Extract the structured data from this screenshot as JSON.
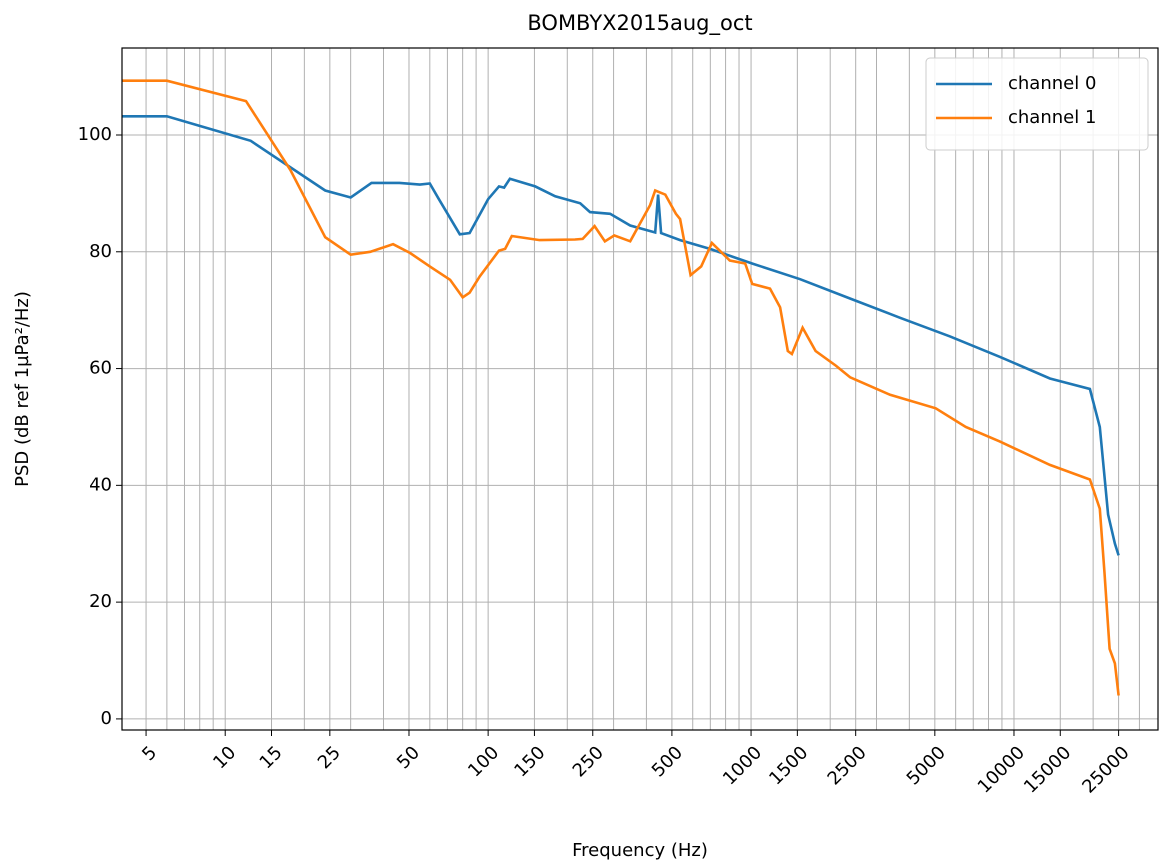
{
  "chart_data": {
    "type": "line",
    "title": "BOMBYX2015aug_oct",
    "xlabel": "Frequency (Hz)",
    "ylabel": "PSD (dB ref 1µPa²/Hz)",
    "xscale": "log",
    "grid": true,
    "legend": "upper right",
    "xlim": [
      4.05,
      35300
    ],
    "ylim": [
      -1.9,
      114.9
    ],
    "xticks": [
      5,
      10,
      15,
      25,
      50,
      100,
      150,
      250,
      500,
      1000,
      1500,
      2500,
      5000,
      10000,
      15000,
      25000
    ],
    "xminorticks": [
      6,
      7,
      8,
      9,
      20,
      30,
      40,
      60,
      70,
      80,
      90,
      200,
      300,
      400,
      600,
      700,
      800,
      900,
      2000,
      3000,
      4000,
      6000,
      7000,
      8000,
      9000,
      20000,
      30000
    ],
    "yticks": [
      0,
      20,
      40,
      60,
      80,
      100
    ],
    "series": [
      {
        "name": "channel 0",
        "color": "#1f77b4",
        "x": [
          4.05,
          6,
          12.5,
          24,
          30,
          36,
          46,
          55,
          60,
          65,
          78,
          85,
          100,
          110,
          115,
          121,
          151,
          180,
          224,
          244,
          291,
          347,
          432,
          443,
          455,
          537,
          698,
          1009,
          1536,
          2378,
          3690,
          5710,
          8850,
          13700,
          19450,
          21200,
          22800,
          24200,
          25000
        ],
        "values": [
          103.2,
          103.2,
          99,
          90.5,
          89.3,
          91.8,
          91.8,
          91.5,
          91.7,
          89,
          83,
          83.2,
          89,
          91.2,
          91,
          92.5,
          91.2,
          89.5,
          88.3,
          86.8,
          86.5,
          84.5,
          83.3,
          89.8,
          83.2,
          82,
          80.5,
          78,
          75.3,
          72,
          68.7,
          65.5,
          62,
          58.3,
          56.5,
          50,
          35,
          30,
          28
        ]
      },
      {
        "name": "channel 1",
        "color": "#ff7f0e",
        "x": [
          4.05,
          6,
          12,
          17.7,
          24,
          30,
          35.6,
          43.5,
          50.5,
          60,
          71.7,
          80,
          85,
          93,
          110,
          116,
          123,
          157,
          214,
          229,
          254,
          278,
          302,
          347,
          413,
          432,
          472,
          518,
          537,
          589,
          646,
          710,
          830,
          950,
          1010,
          1180,
          1290,
          1380,
          1430,
          1570,
          1760,
          2100,
          2380,
          3380,
          5040,
          6560,
          8850,
          13700,
          19450,
          21200,
          22100,
          23100,
          24200,
          25000
        ],
        "values": [
          109.3,
          109.3,
          105.8,
          94,
          82.5,
          79.5,
          80,
          81.3,
          79.8,
          77.5,
          75.2,
          72.2,
          73,
          75.8,
          80.2,
          80.5,
          82.7,
          82,
          82.1,
          82.2,
          84.4,
          81.8,
          82.8,
          81.8,
          88,
          90.5,
          89.8,
          86.5,
          85.6,
          76,
          77.5,
          81.5,
          78.5,
          78,
          74.5,
          73.7,
          70.5,
          63,
          62.5,
          67,
          63,
          60.5,
          58.5,
          55.5,
          53.2,
          50,
          47.5,
          43.5,
          41,
          36,
          25,
          12,
          9.5,
          4
        ]
      }
    ]
  }
}
